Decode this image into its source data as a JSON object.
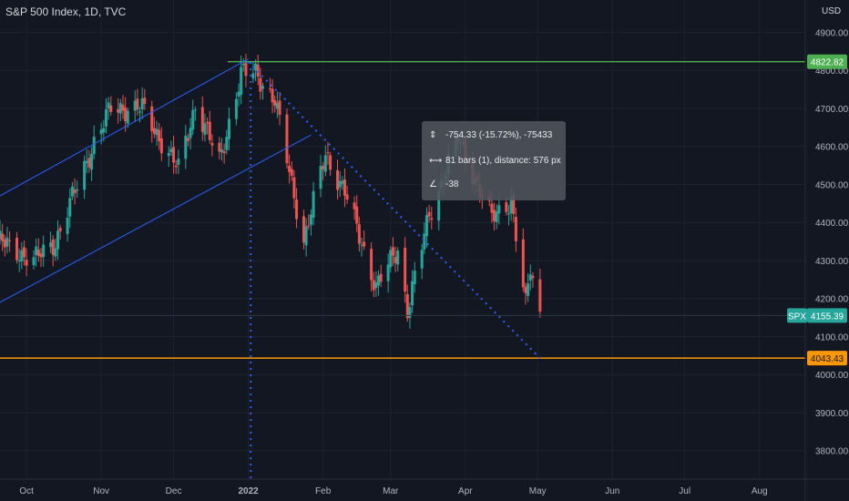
{
  "header": {
    "title": "S&P 500 Index, 1D, TVC",
    "currency": "USD"
  },
  "measure_tooltip": {
    "price_line": "-754.33 (-15.72%), -75433",
    "bars_line": "81 bars (1",
    "bars_line_tail": "), distance: 576 px",
    "angle_line": "-38"
  },
  "price_labels": {
    "resistance": "4822.82",
    "symbol": "SPX",
    "current": "4155.39",
    "support": "4043.43"
  },
  "colors": {
    "background": "#131722",
    "up": "#26a69a",
    "down": "#ef5350",
    "resistance": "#4caf50",
    "support": "#ff9800",
    "channel": "#2962ff",
    "trend": "#2962ff"
  },
  "chart_data": {
    "type": "candlestick",
    "title": "S&P 500 Index, 1D, TVC",
    "y_axis_ticks": [
      3800,
      3900,
      4000,
      4100,
      4200,
      4300,
      4400,
      4500,
      4600,
      4700,
      4800,
      4900
    ],
    "y_axis_tick_labels": [
      "3800.00",
      "3900.00",
      "4000.00",
      "4100.00",
      "4200.00",
      "4300.00",
      "4400.00",
      "4500.00",
      "4600.00",
      "4700.00",
      "4800.00",
      "4900.00"
    ],
    "ylim": [
      3725,
      4985
    ],
    "x_axis_labels": [
      "Oct",
      "Nov",
      "Dec",
      "2022",
      "Feb",
      "Mar",
      "Apr",
      "May",
      "Jun",
      "Jul",
      "Aug"
    ],
    "x_axis_dates": [
      "2021-10-01",
      "2021-11-01",
      "2021-12-01",
      "2022-01-01",
      "2022-02-01",
      "2022-03-01",
      "2022-04-01",
      "2022-05-01",
      "2022-06-01",
      "2022-07-01",
      "2022-08-01"
    ],
    "date_range": [
      "2021-09-20",
      "2022-08-20"
    ],
    "horizontal_levels": [
      {
        "label": "resistance",
        "value": 4822.82
      },
      {
        "label": "support",
        "value": 4043.43
      }
    ],
    "series_waypoints": [
      [
        "2021-09-20",
        4350
      ],
      [
        "2021-10-04",
        4300
      ],
      [
        "2021-10-13",
        4350
      ],
      [
        "2021-10-29",
        4610
      ],
      [
        "2021-11-05",
        4700
      ],
      [
        "2021-11-18",
        4700
      ],
      [
        "2021-11-30",
        4570
      ],
      [
        "2021-12-03",
        4540
      ],
      [
        "2021-12-10",
        4710
      ],
      [
        "2021-12-20",
        4560
      ],
      [
        "2021-12-29",
        4790
      ],
      [
        "2022-01-04",
        4795
      ],
      [
        "2022-01-12",
        4720
      ],
      [
        "2022-01-24",
        4350
      ],
      [
        "2022-02-02",
        4580
      ],
      [
        "2022-02-10",
        4480
      ],
      [
        "2022-02-23",
        4230
      ],
      [
        "2022-03-04",
        4330
      ],
      [
        "2022-03-08",
        4170
      ],
      [
        "2022-03-17",
        4420
      ],
      [
        "2022-03-29",
        4620
      ],
      [
        "2022-04-12",
        4410
      ],
      [
        "2022-04-20",
        4460
      ],
      [
        "2022-04-26",
        4180
      ],
      [
        "2022-04-28",
        4280
      ],
      [
        "2022-05-02",
        4155
      ]
    ]
  }
}
